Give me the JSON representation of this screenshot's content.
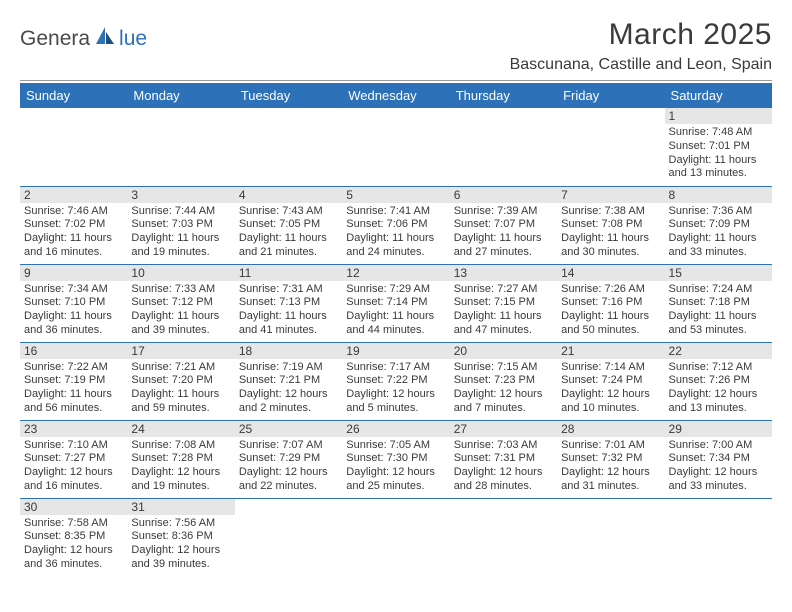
{
  "logo": {
    "dark": "Genera",
    "blue": "lue"
  },
  "title": "March 2025",
  "location": "Bascunana, Castille and Leon, Spain",
  "colors": {
    "header_bg": "#2d71b8",
    "header_text": "#ffffff",
    "daynum_bg": "#e6e6e6",
    "text": "#3a3a3a",
    "row_border": "#2d71b8",
    "divider": "#9a9a9a"
  },
  "weekdays": [
    "Sunday",
    "Monday",
    "Tuesday",
    "Wednesday",
    "Thursday",
    "Friday",
    "Saturday"
  ],
  "weeks": [
    [
      null,
      null,
      null,
      null,
      null,
      null,
      {
        "d": "1",
        "sr": "7:48 AM",
        "ss": "7:01 PM",
        "dl": "11 hours and 13 minutes."
      }
    ],
    [
      {
        "d": "2",
        "sr": "7:46 AM",
        "ss": "7:02 PM",
        "dl": "11 hours and 16 minutes."
      },
      {
        "d": "3",
        "sr": "7:44 AM",
        "ss": "7:03 PM",
        "dl": "11 hours and 19 minutes."
      },
      {
        "d": "4",
        "sr": "7:43 AM",
        "ss": "7:05 PM",
        "dl": "11 hours and 21 minutes."
      },
      {
        "d": "5",
        "sr": "7:41 AM",
        "ss": "7:06 PM",
        "dl": "11 hours and 24 minutes."
      },
      {
        "d": "6",
        "sr": "7:39 AM",
        "ss": "7:07 PM",
        "dl": "11 hours and 27 minutes."
      },
      {
        "d": "7",
        "sr": "7:38 AM",
        "ss": "7:08 PM",
        "dl": "11 hours and 30 minutes."
      },
      {
        "d": "8",
        "sr": "7:36 AM",
        "ss": "7:09 PM",
        "dl": "11 hours and 33 minutes."
      }
    ],
    [
      {
        "d": "9",
        "sr": "7:34 AM",
        "ss": "7:10 PM",
        "dl": "11 hours and 36 minutes."
      },
      {
        "d": "10",
        "sr": "7:33 AM",
        "ss": "7:12 PM",
        "dl": "11 hours and 39 minutes."
      },
      {
        "d": "11",
        "sr": "7:31 AM",
        "ss": "7:13 PM",
        "dl": "11 hours and 41 minutes."
      },
      {
        "d": "12",
        "sr": "7:29 AM",
        "ss": "7:14 PM",
        "dl": "11 hours and 44 minutes."
      },
      {
        "d": "13",
        "sr": "7:27 AM",
        "ss": "7:15 PM",
        "dl": "11 hours and 47 minutes."
      },
      {
        "d": "14",
        "sr": "7:26 AM",
        "ss": "7:16 PM",
        "dl": "11 hours and 50 minutes."
      },
      {
        "d": "15",
        "sr": "7:24 AM",
        "ss": "7:18 PM",
        "dl": "11 hours and 53 minutes."
      }
    ],
    [
      {
        "d": "16",
        "sr": "7:22 AM",
        "ss": "7:19 PM",
        "dl": "11 hours and 56 minutes."
      },
      {
        "d": "17",
        "sr": "7:21 AM",
        "ss": "7:20 PM",
        "dl": "11 hours and 59 minutes."
      },
      {
        "d": "18",
        "sr": "7:19 AM",
        "ss": "7:21 PM",
        "dl": "12 hours and 2 minutes."
      },
      {
        "d": "19",
        "sr": "7:17 AM",
        "ss": "7:22 PM",
        "dl": "12 hours and 5 minutes."
      },
      {
        "d": "20",
        "sr": "7:15 AM",
        "ss": "7:23 PM",
        "dl": "12 hours and 7 minutes."
      },
      {
        "d": "21",
        "sr": "7:14 AM",
        "ss": "7:24 PM",
        "dl": "12 hours and 10 minutes."
      },
      {
        "d": "22",
        "sr": "7:12 AM",
        "ss": "7:26 PM",
        "dl": "12 hours and 13 minutes."
      }
    ],
    [
      {
        "d": "23",
        "sr": "7:10 AM",
        "ss": "7:27 PM",
        "dl": "12 hours and 16 minutes."
      },
      {
        "d": "24",
        "sr": "7:08 AM",
        "ss": "7:28 PM",
        "dl": "12 hours and 19 minutes."
      },
      {
        "d": "25",
        "sr": "7:07 AM",
        "ss": "7:29 PM",
        "dl": "12 hours and 22 minutes."
      },
      {
        "d": "26",
        "sr": "7:05 AM",
        "ss": "7:30 PM",
        "dl": "12 hours and 25 minutes."
      },
      {
        "d": "27",
        "sr": "7:03 AM",
        "ss": "7:31 PM",
        "dl": "12 hours and 28 minutes."
      },
      {
        "d": "28",
        "sr": "7:01 AM",
        "ss": "7:32 PM",
        "dl": "12 hours and 31 minutes."
      },
      {
        "d": "29",
        "sr": "7:00 AM",
        "ss": "7:34 PM",
        "dl": "12 hours and 33 minutes."
      }
    ],
    [
      {
        "d": "30",
        "sr": "7:58 AM",
        "ss": "8:35 PM",
        "dl": "12 hours and 36 minutes."
      },
      {
        "d": "31",
        "sr": "7:56 AM",
        "ss": "8:36 PM",
        "dl": "12 hours and 39 minutes."
      },
      null,
      null,
      null,
      null,
      null
    ]
  ],
  "labels": {
    "sunrise": "Sunrise: ",
    "sunset": "Sunset: ",
    "daylight": "Daylight: "
  }
}
